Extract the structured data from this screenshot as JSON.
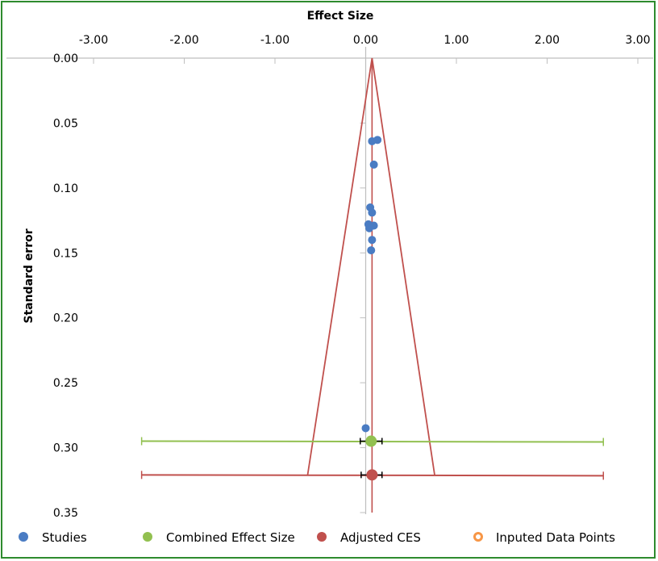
{
  "chart_data": {
    "type": "scatter",
    "xlabel": "Effect Size",
    "ylabel": "Standard error",
    "xlim": [
      -3.0,
      3.0
    ],
    "ylim": [
      0.0,
      0.35
    ],
    "x_axis_position": "top",
    "y_axis_inverted": true,
    "x_ticks": [
      "-3.00",
      "-2.00",
      "-1.00",
      "0.00",
      "1.00",
      "2.00",
      "3.00"
    ],
    "y_ticks": [
      "0.00",
      "0.05",
      "0.10",
      "0.15",
      "0.20",
      "0.25",
      "0.30",
      "0.35"
    ],
    "grid": false,
    "legend_position": "bottom",
    "series": [
      {
        "name": "Studies",
        "color": "#4a7cc3",
        "points": [
          {
            "x": 0.13,
            "y": 0.063
          },
          {
            "x": 0.07,
            "y": 0.064
          },
          {
            "x": 0.09,
            "y": 0.082
          },
          {
            "x": 0.05,
            "y": 0.115
          },
          {
            "x": 0.07,
            "y": 0.119
          },
          {
            "x": 0.03,
            "y": 0.128
          },
          {
            "x": 0.09,
            "y": 0.129
          },
          {
            "x": 0.04,
            "y": 0.131
          },
          {
            "x": 0.07,
            "y": 0.14
          },
          {
            "x": 0.06,
            "y": 0.148
          },
          {
            "x": 0.0,
            "y": 0.285
          }
        ]
      },
      {
        "name": "Combined Effect Size",
        "color": "#92c050",
        "points": [
          {
            "x": 0.06,
            "y": 0.295
          }
        ],
        "ci_x": [
          -0.06,
          0.18
        ],
        "whisker_x": [
          -2.47,
          2.62
        ]
      },
      {
        "name": "Adjusted CES",
        "color": "#c0504d",
        "points": [
          {
            "x": 0.07,
            "y": 0.321
          }
        ],
        "ci_x": [
          -0.05,
          0.18
        ],
        "whisker_x": [
          -2.47,
          2.62
        ],
        "funnel": {
          "apex": [
            0.07,
            0.0
          ],
          "left_base": [
            -0.64,
            0.321
          ],
          "right_base": [
            0.76,
            0.321
          ]
        }
      },
      {
        "name": "Inputed Data Points",
        "color": "#f79646",
        "points": []
      }
    ]
  }
}
